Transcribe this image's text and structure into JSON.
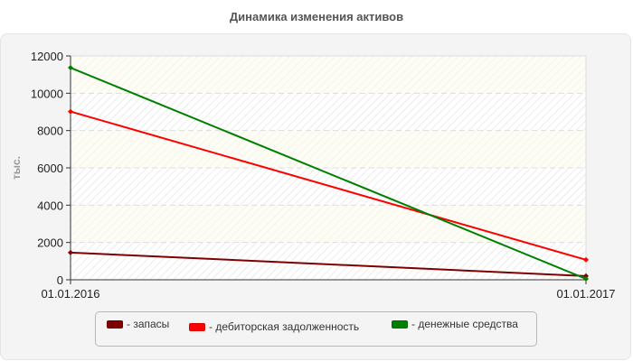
{
  "chart_data": {
    "type": "line",
    "title": "Динамика изменения активов",
    "xlabel": "",
    "ylabel": "тыс.",
    "categories": [
      "01.01.2016",
      "01.01.2017"
    ],
    "series": [
      {
        "name": "запасы",
        "color": "#7f0000",
        "values": [
          1460,
          200
        ]
      },
      {
        "name": "дебиторская задолженность",
        "color": "#ff0000",
        "values": [
          9020,
          1070
        ]
      },
      {
        "name": "денежные средства",
        "color": "#008000",
        "values": [
          11370,
          50
        ]
      }
    ],
    "ylim": [
      0,
      12000
    ],
    "yticks": [
      "0",
      "2000",
      "4000",
      "6000",
      "8000",
      "10000",
      "12000"
    ],
    "grid": true,
    "legend_position": "bottom"
  },
  "legend": {
    "items": [
      {
        "label": "- запасы",
        "color": "#7f0000"
      },
      {
        "label": "- дебиторская задолженность",
        "color": "#ff0000"
      },
      {
        "label": "- денежные средства",
        "color": "#008000"
      }
    ]
  }
}
